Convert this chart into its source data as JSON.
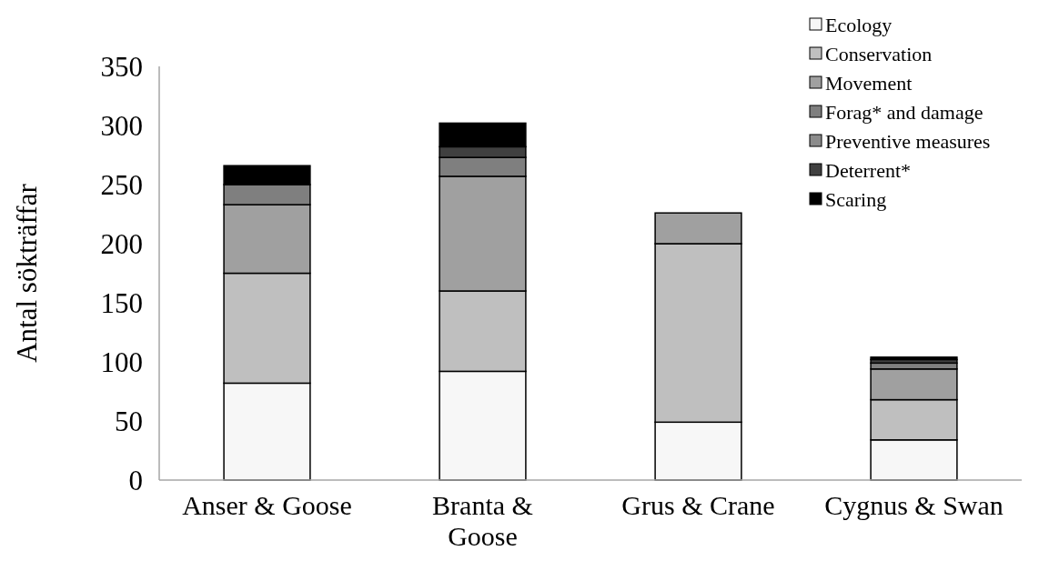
{
  "chart_data": {
    "type": "bar",
    "stacked": true,
    "ylabel": "Antal sökträffar",
    "categories": [
      "Anser & Goose",
      "Branta & Goose",
      "Grus &  Crane",
      "Cygnus & Swan"
    ],
    "ylim": [
      0,
      350
    ],
    "yticks": [
      0,
      50,
      100,
      150,
      200,
      250,
      300,
      350
    ],
    "grid": false,
    "legend": "top right",
    "series": [
      {
        "name": "Ecology",
        "color": "#f7f7f7",
        "values": [
          82,
          92,
          49,
          34
        ]
      },
      {
        "name": "Conservation",
        "color": "#bfbfbf",
        "values": [
          93,
          68,
          151,
          34
        ]
      },
      {
        "name": "Movement",
        "color": "#a0a0a0",
        "values": [
          58,
          97,
          26,
          26
        ]
      },
      {
        "name": "Forag* and damage",
        "color": "#7f7f7f",
        "values": [
          17,
          16,
          0,
          5
        ]
      },
      {
        "name": "Preventive measures",
        "color": "#8c8c8c",
        "values": [
          0,
          0,
          0,
          0
        ]
      },
      {
        "name": "Deterrent*",
        "color": "#404040",
        "values": [
          0,
          9,
          0,
          3
        ]
      },
      {
        "name": "Scaring",
        "color": "#000000",
        "values": [
          16,
          20,
          0,
          2
        ]
      }
    ]
  }
}
